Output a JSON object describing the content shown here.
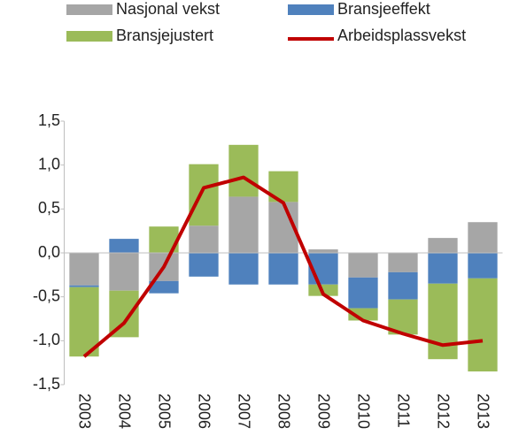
{
  "chart_data": {
    "type": "bar",
    "stacked": true,
    "categories": [
      "2003",
      "2004",
      "2005",
      "2006",
      "2007",
      "2008",
      "2009",
      "2010",
      "2011",
      "2012",
      "2013"
    ],
    "series": [
      {
        "name": "Nasjonal vekst",
        "color": "#a6a6a6",
        "values": [
          -0.37,
          -0.43,
          -0.32,
          0.31,
          0.64,
          0.58,
          0.04,
          -0.28,
          -0.22,
          0.17,
          0.35
        ]
      },
      {
        "name": "Bransjeeffekt",
        "color": "#4f81bd",
        "values": [
          -0.02,
          0.16,
          -0.14,
          -0.27,
          -0.36,
          -0.36,
          -0.36,
          -0.35,
          -0.31,
          -0.35,
          -0.29
        ]
      },
      {
        "name": "Bransjejustert",
        "color": "#9bbb59",
        "values": [
          -0.79,
          -0.53,
          0.3,
          0.7,
          0.59,
          0.35,
          -0.13,
          -0.14,
          -0.4,
          -0.86,
          -1.06
        ]
      },
      {
        "name": "Arbeidsplassvekst",
        "type": "line",
        "color": "#c00000",
        "values": [
          -1.18,
          -0.8,
          -0.16,
          0.74,
          0.86,
          0.57,
          -0.47,
          -0.77,
          -0.92,
          -1.05,
          -1.0
        ]
      }
    ],
    "ylim": [
      -1.5,
      1.5
    ],
    "yticks": [
      {
        "value": -1.5,
        "label": "-1,5"
      },
      {
        "value": -1.0,
        "label": "-1,0"
      },
      {
        "value": -0.5,
        "label": "-0,5"
      },
      {
        "value": 0,
        "label": "0,0"
      },
      {
        "value": 0.5,
        "label": "0,5"
      },
      {
        "value": 1.0,
        "label": "1,0"
      },
      {
        "value": 1.5,
        "label": "1,5"
      }
    ],
    "legend": "top"
  }
}
